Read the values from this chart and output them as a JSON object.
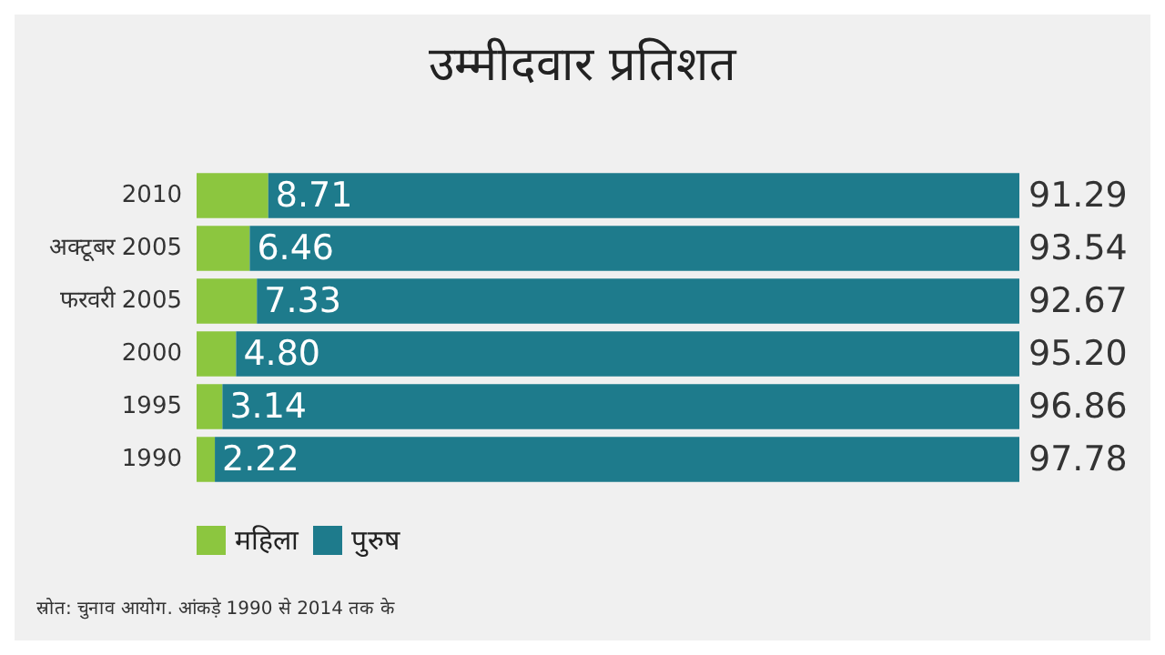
{
  "chart_data": {
    "type": "bar",
    "orientation": "horizontal",
    "stacked": true,
    "title": "उम्मीदवार प्रतिशत",
    "categories": [
      "2010",
      "अक्टूबर 2005",
      "फरवरी 2005",
      "2000",
      "1995",
      "1990"
    ],
    "series": [
      {
        "name": "महिला",
        "color": "#8cc63f",
        "values": [
          8.71,
          6.46,
          7.33,
          4.8,
          3.14,
          2.22
        ],
        "value_labels": [
          "8.71",
          "6.46",
          "7.33",
          "4.80",
          "3.14",
          "2.22"
        ]
      },
      {
        "name": "पुरुष",
        "color": "#1e7b8c",
        "values": [
          91.29,
          93.54,
          92.67,
          95.2,
          96.86,
          97.78
        ],
        "value_labels": [
          "91.29",
          "93.54",
          "92.67",
          "95.20",
          "96.86",
          "97.78"
        ]
      }
    ],
    "xlim": [
      0,
      100
    ],
    "legend": "bottom left",
    "annotations": [
      "स्रोत: चुनाव आयोग. आंकड़े 1990 से 2014 तक के"
    ]
  }
}
